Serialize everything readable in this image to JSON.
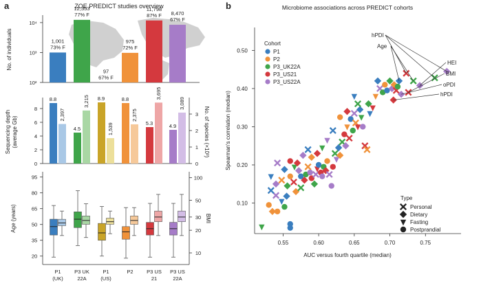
{
  "colors": {
    "P1": "#3a7ebf",
    "P2": "#f0923a",
    "P3_UK22A": "#3fa54a",
    "P3_US21": "#d4393e",
    "P3_US22A": "#a67cc8",
    "P1_light": "#a9c8e6",
    "P2_light": "#f6c99a",
    "P3_UK22A_light": "#a9d7a4",
    "P3_US21_light": "#eea6a6",
    "P3_US22A_light": "#d3bde6",
    "P1_US": "#c9a428",
    "P1_US_light": "#ecdf9a"
  },
  "panel_a": {
    "letter": "a",
    "title": "ZOE PREDICT studies overview",
    "groups": [
      "P1\n(UK)",
      "P3 UK\n22A",
      "P1\n(US)",
      "P2",
      "P3 US\n21",
      "P3 US\n22A"
    ],
    "bars": {
      "ylabel": "No. of individuals",
      "yticks": [
        "10²",
        "10³",
        "10⁴"
      ],
      "values": [
        1001,
        12353,
        97,
        975,
        11798,
        8470
      ],
      "labels": [
        "1,001",
        "12,353",
        "97",
        "975",
        "11,798",
        "8,470"
      ],
      "female_pct": [
        "73% F",
        "77% F",
        "67% F",
        "72% F",
        "87% F",
        "67% F"
      ]
    },
    "seq": {
      "ylabel1": "Sequencing depth",
      "ylabel2": "(average Gb)",
      "y2label": "No. of species (×10³)",
      "yticks_left": [
        "0",
        "2",
        "4",
        "6",
        "8"
      ],
      "yticks_right": [
        "0",
        "1",
        "2",
        "3"
      ],
      "depth_values": [
        8.8,
        4.5,
        8.9,
        8.8,
        5.3,
        4.9
      ],
      "depth_labels": [
        "8.8",
        "4.5",
        "8.9",
        "8.8",
        "5.3",
        "4.9"
      ],
      "species_values": [
        2397,
        3215,
        1539,
        2375,
        3695,
        3089
      ],
      "species_labels": [
        "2,397",
        "3,215",
        "1,539",
        "2,375",
        "3,695",
        "3,089"
      ]
    },
    "box": {
      "ylabel": "Age (years)",
      "y2label": "BMI",
      "yticks_left": [
        "20",
        "35",
        "50",
        "65",
        "80",
        "95"
      ],
      "yticks_right": [
        "10",
        "20",
        "30",
        "50",
        "100"
      ],
      "age": [
        {
          "q1": 40,
          "median": 48,
          "q3": 55,
          "lo": 19,
          "hi": 68
        },
        {
          "q1": 47,
          "median": 55,
          "q3": 62,
          "lo": 30,
          "hi": 82
        },
        {
          "q1": 35,
          "median": 42,
          "q3": 51,
          "lo": 20,
          "hi": 67
        },
        {
          "q1": 36,
          "median": 43,
          "q3": 48,
          "lo": 18,
          "hi": 66
        },
        {
          "q1": 40,
          "median": 46,
          "q3": 52,
          "lo": 19,
          "hi": 70
        },
        {
          "q1": 40,
          "median": 46,
          "q3": 52,
          "lo": 19,
          "hi": 70
        }
      ],
      "bmi": [
        {
          "q1": 23,
          "median": 25,
          "q3": 28,
          "lo": 17,
          "hi": 36
        },
        {
          "q1": 24,
          "median": 27,
          "q3": 31,
          "lo": 16,
          "hi": 45
        },
        {
          "q1": 24,
          "median": 26,
          "q3": 29,
          "lo": 18,
          "hi": 36
        },
        {
          "q1": 24,
          "median": 27,
          "q3": 31,
          "lo": 17,
          "hi": 40
        },
        {
          "q1": 26,
          "median": 30,
          "q3": 36,
          "lo": 17,
          "hi": 60
        },
        {
          "q1": 26,
          "median": 30,
          "q3": 36,
          "lo": 17,
          "hi": 60
        }
      ]
    }
  },
  "chart_data": {
    "type": "scatter",
    "letter": "b",
    "title": "Microbiome associations across PREDICT cohorts",
    "xlabel": "AUC versus fourth quartile (median)",
    "ylabel": "Spearman's correlation (median)",
    "xlim": [
      0.51,
      0.8
    ],
    "ylim": [
      0.02,
      0.56
    ],
    "xticks": [
      "0.55",
      "0.60",
      "0.65",
      "0.70",
      "0.75"
    ],
    "yticks": [
      "0.10",
      "0.20",
      "0.30",
      "0.40",
      "0.50"
    ],
    "legend_cohort_title": "Cohort",
    "cohorts": [
      "P1",
      "P2",
      "P3_UK22A",
      "P3_US21",
      "P3_US22A"
    ],
    "legend_type_title": "Type",
    "types": [
      "Personal",
      "Dietary",
      "Fasting",
      "Postprandial"
    ],
    "annotations": [
      "hPDI",
      "Age",
      "HEI",
      "BMI",
      "oPDI",
      "hPDI"
    ],
    "annotation_points": [
      {
        "label_index": 0,
        "x": 0.78,
        "y": 0.445,
        "cohort": 4,
        "type": 1
      },
      {
        "label_index": 0,
        "x": 0.763,
        "y": 0.428,
        "cohort": 2,
        "type": 0
      },
      {
        "label_index": 1,
        "x": 0.713,
        "y": 0.42,
        "cohort": 0,
        "type": 1
      },
      {
        "label_index": 1,
        "x": 0.723,
        "y": 0.44,
        "cohort": 3,
        "type": 0
      },
      {
        "label_index": 1,
        "x": 0.733,
        "y": 0.42,
        "cohort": 2,
        "type": 0
      },
      {
        "label_index": 2,
        "x": 0.742,
        "y": 0.408,
        "cohort": 4,
        "type": 1
      },
      {
        "label_index": 3,
        "x": 0.726,
        "y": 0.39,
        "cohort": 3,
        "type": 0
      },
      {
        "label_index": 4,
        "x": 0.716,
        "y": 0.385,
        "cohort": 4,
        "type": 1
      },
      {
        "label_index": 5,
        "x": 0.705,
        "y": 0.37,
        "cohort": 3,
        "type": 1
      }
    ],
    "points": [
      {
        "x": 0.56,
        "y": 0.035,
        "c": 0,
        "t": 3
      },
      {
        "x": 0.56,
        "y": 0.045,
        "c": 0,
        "t": 3
      },
      {
        "x": 0.52,
        "y": 0.038,
        "c": 2,
        "t": 2
      },
      {
        "x": 0.53,
        "y": 0.095,
        "c": 1,
        "t": 3
      },
      {
        "x": 0.535,
        "y": 0.078,
        "c": 1,
        "t": 1
      },
      {
        "x": 0.542,
        "y": 0.078,
        "c": 1,
        "t": 3
      },
      {
        "x": 0.548,
        "y": 0.105,
        "c": 0,
        "t": 2
      },
      {
        "x": 0.552,
        "y": 0.09,
        "c": 2,
        "t": 3
      },
      {
        "x": 0.54,
        "y": 0.12,
        "c": 4,
        "t": 0
      },
      {
        "x": 0.533,
        "y": 0.133,
        "c": 0,
        "t": 0
      },
      {
        "x": 0.54,
        "y": 0.15,
        "c": 4,
        "t": 1
      },
      {
        "x": 0.555,
        "y": 0.118,
        "c": 0,
        "t": 1
      },
      {
        "x": 0.548,
        "y": 0.16,
        "c": 1,
        "t": 0
      },
      {
        "x": 0.556,
        "y": 0.145,
        "c": 2,
        "t": 1
      },
      {
        "x": 0.533,
        "y": 0.17,
        "c": 0,
        "t": 2
      },
      {
        "x": 0.542,
        "y": 0.205,
        "c": 4,
        "t": 0
      },
      {
        "x": 0.552,
        "y": 0.188,
        "c": 0,
        "t": 1
      },
      {
        "x": 0.56,
        "y": 0.17,
        "c": 1,
        "t": 3
      },
      {
        "x": 0.565,
        "y": 0.155,
        "c": 3,
        "t": 0
      },
      {
        "x": 0.568,
        "y": 0.13,
        "c": 1,
        "t": 1
      },
      {
        "x": 0.575,
        "y": 0.14,
        "c": 2,
        "t": 0
      },
      {
        "x": 0.56,
        "y": 0.21,
        "c": 3,
        "t": 3
      },
      {
        "x": 0.566,
        "y": 0.195,
        "c": 2,
        "t": 2
      },
      {
        "x": 0.572,
        "y": 0.185,
        "c": 4,
        "t": 1
      },
      {
        "x": 0.575,
        "y": 0.17,
        "c": 0,
        "t": 3
      },
      {
        "x": 0.58,
        "y": 0.16,
        "c": 3,
        "t": 1
      },
      {
        "x": 0.582,
        "y": 0.175,
        "c": 2,
        "t": 3
      },
      {
        "x": 0.585,
        "y": 0.195,
        "c": 1,
        "t": 0
      },
      {
        "x": 0.588,
        "y": 0.18,
        "c": 4,
        "t": 3
      },
      {
        "x": 0.59,
        "y": 0.165,
        "c": 3,
        "t": 3
      },
      {
        "x": 0.594,
        "y": 0.15,
        "c": 2,
        "t": 1
      },
      {
        "x": 0.596,
        "y": 0.175,
        "c": 4,
        "t": 0
      },
      {
        "x": 0.598,
        "y": 0.19,
        "c": 3,
        "t": 2
      },
      {
        "x": 0.6,
        "y": 0.2,
        "c": 0,
        "t": 3
      },
      {
        "x": 0.603,
        "y": 0.18,
        "c": 3,
        "t": 3
      },
      {
        "x": 0.605,
        "y": 0.17,
        "c": 4,
        "t": 3
      },
      {
        "x": 0.607,
        "y": 0.195,
        "c": 2,
        "t": 3
      },
      {
        "x": 0.61,
        "y": 0.185,
        "c": 3,
        "t": 1
      },
      {
        "x": 0.612,
        "y": 0.21,
        "c": 1,
        "t": 3
      },
      {
        "x": 0.615,
        "y": 0.175,
        "c": 4,
        "t": 0
      },
      {
        "x": 0.618,
        "y": 0.145,
        "c": 4,
        "t": 3
      },
      {
        "x": 0.62,
        "y": 0.195,
        "c": 3,
        "t": 3
      },
      {
        "x": 0.623,
        "y": 0.23,
        "c": 2,
        "t": 0
      },
      {
        "x": 0.625,
        "y": 0.215,
        "c": 4,
        "t": 2
      },
      {
        "x": 0.628,
        "y": 0.245,
        "c": 0,
        "t": 1
      },
      {
        "x": 0.63,
        "y": 0.225,
        "c": 1,
        "t": 1
      },
      {
        "x": 0.633,
        "y": 0.26,
        "c": 2,
        "t": 0
      },
      {
        "x": 0.636,
        "y": 0.28,
        "c": 3,
        "t": 3
      },
      {
        "x": 0.638,
        "y": 0.25,
        "c": 4,
        "t": 1
      },
      {
        "x": 0.64,
        "y": 0.3,
        "c": 1,
        "t": 2
      },
      {
        "x": 0.643,
        "y": 0.27,
        "c": 3,
        "t": 0
      },
      {
        "x": 0.645,
        "y": 0.32,
        "c": 0,
        "t": 3
      },
      {
        "x": 0.648,
        "y": 0.29,
        "c": 2,
        "t": 3
      },
      {
        "x": 0.65,
        "y": 0.335,
        "c": 4,
        "t": 0
      },
      {
        "x": 0.652,
        "y": 0.31,
        "c": 1,
        "t": 0
      },
      {
        "x": 0.655,
        "y": 0.3,
        "c": 3,
        "t": 2
      },
      {
        "x": 0.658,
        "y": 0.345,
        "c": 0,
        "t": 1
      },
      {
        "x": 0.66,
        "y": 0.325,
        "c": 2,
        "t": 2
      },
      {
        "x": 0.662,
        "y": 0.3,
        "c": 4,
        "t": 3
      },
      {
        "x": 0.665,
        "y": 0.25,
        "c": 3,
        "t": 0
      },
      {
        "x": 0.668,
        "y": 0.24,
        "c": 1,
        "t": 0
      },
      {
        "x": 0.67,
        "y": 0.36,
        "c": 2,
        "t": 1
      },
      {
        "x": 0.672,
        "y": 0.335,
        "c": 0,
        "t": 2
      },
      {
        "x": 0.676,
        "y": 0.35,
        "c": 3,
        "t": 2
      },
      {
        "x": 0.68,
        "y": 0.38,
        "c": 1,
        "t": 2
      },
      {
        "x": 0.683,
        "y": 0.42,
        "c": 0,
        "t": 1
      },
      {
        "x": 0.686,
        "y": 0.4,
        "c": 4,
        "t": 0
      },
      {
        "x": 0.69,
        "y": 0.39,
        "c": 2,
        "t": 3
      },
      {
        "x": 0.693,
        "y": 0.41,
        "c": 1,
        "t": 3
      },
      {
        "x": 0.696,
        "y": 0.395,
        "c": 0,
        "t": 3
      },
      {
        "x": 0.7,
        "y": 0.42,
        "c": 2,
        "t": 1
      },
      {
        "x": 0.703,
        "y": 0.4,
        "c": 4,
        "t": 1
      },
      {
        "x": 0.706,
        "y": 0.41,
        "c": 1,
        "t": 1
      },
      {
        "x": 0.709,
        "y": 0.395,
        "c": 3,
        "t": 0
      },
      {
        "x": 0.711,
        "y": 0.405,
        "c": 2,
        "t": 3
      },
      {
        "x": 0.65,
        "y": 0.38,
        "c": 0,
        "t": 2
      },
      {
        "x": 0.655,
        "y": 0.36,
        "c": 2,
        "t": 0
      },
      {
        "x": 0.64,
        "y": 0.34,
        "c": 3,
        "t": 1
      },
      {
        "x": 0.63,
        "y": 0.325,
        "c": 1,
        "t": 3
      },
      {
        "x": 0.62,
        "y": 0.29,
        "c": 0,
        "t": 0
      },
      {
        "x": 0.612,
        "y": 0.265,
        "c": 4,
        "t": 2
      },
      {
        "x": 0.605,
        "y": 0.245,
        "c": 2,
        "t": 2
      },
      {
        "x": 0.598,
        "y": 0.23,
        "c": 3,
        "t": 1
      },
      {
        "x": 0.59,
        "y": 0.22,
        "c": 1,
        "t": 1
      },
      {
        "x": 0.585,
        "y": 0.24,
        "c": 0,
        "t": 0
      },
      {
        "x": 0.578,
        "y": 0.225,
        "c": 4,
        "t": 1
      },
      {
        "x": 0.57,
        "y": 0.205,
        "c": 3,
        "t": 1
      }
    ]
  }
}
